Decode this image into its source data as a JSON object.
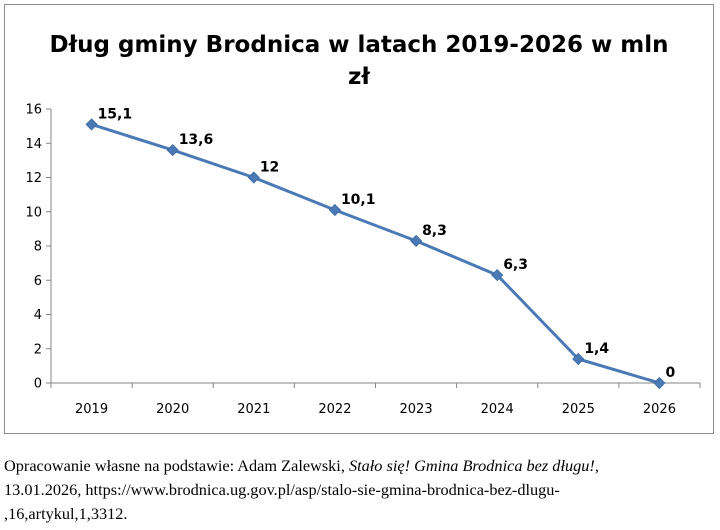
{
  "chart_data": {
    "type": "line",
    "title_lines": [
      "Dług gminy Brodnica w latach 2019-2026 w mln",
      "zł"
    ],
    "xlabel": "",
    "ylabel": "",
    "categories": [
      "2019",
      "2020",
      "2021",
      "2022",
      "2023",
      "2024",
      "2025",
      "2026"
    ],
    "series": [
      {
        "values": [
          15.1,
          13.6,
          12,
          10.1,
          8.3,
          6.3,
          1.4,
          0
        ],
        "labels": [
          "15,1",
          "13,6",
          "12",
          "10,1",
          "8,3",
          "6,3",
          "1,4",
          "0"
        ],
        "color": "#4a7ab5",
        "marker": "diamond"
      }
    ],
    "y_ticks": [
      "0",
      "2",
      "4",
      "6",
      "8",
      "10",
      "12",
      "14",
      "16"
    ],
    "ylim": [
      0,
      16
    ],
    "grid": false,
    "legend": "none"
  },
  "caption": {
    "line1_prefix": "Opracowanie własne na podstawie: Adam Zalewski, ",
    "line1_italic": "Stało się! Gmina Brodnica bez długu!",
    "line1_suffix": ",",
    "line2": "13.01.2026, https://www.brodnica.ug.gov.pl/asp/stalo-sie-gmina-brodnica-bez-dlugu-",
    "line3": ",16,artykul,1,3312."
  }
}
